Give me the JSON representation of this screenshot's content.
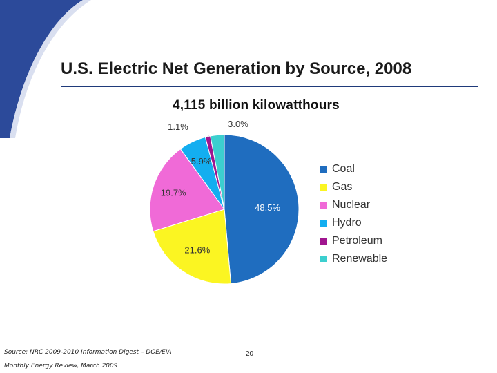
{
  "slide": {
    "title": "U.S. Electric Net Generation by Source, 2008",
    "source_line1": "Source: NRC 2009-2010 Information Digest – DOE/EIA",
    "source_line2": "Monthly Energy Review, March 2009",
    "page_number": "20",
    "colors": {
      "title_rule": "#1f3a7a",
      "corner_swoosh": "#2c4a9a"
    }
  },
  "chart_data": {
    "type": "pie",
    "title": "4,115 billion kilowatthours",
    "legend_placement": "right",
    "slices": [
      {
        "name": "Coal",
        "value": 48.5,
        "label": "48.5%",
        "color": "#1f6dbf"
      },
      {
        "name": "Gas",
        "value": 21.6,
        "label": "21.6%",
        "color": "#fbf522"
      },
      {
        "name": "Nuclear",
        "value": 19.7,
        "label": "19.7%",
        "color": "#f06ad7"
      },
      {
        "name": "Hydro",
        "value": 5.9,
        "label": "5.9%",
        "color": "#13aef0"
      },
      {
        "name": "Petroleum",
        "value": 1.1,
        "label": "1.1%",
        "color": "#a0158f"
      },
      {
        "name": "Renewable",
        "value": 3.0,
        "label": "3.0%",
        "color": "#3ccfcf"
      }
    ]
  }
}
